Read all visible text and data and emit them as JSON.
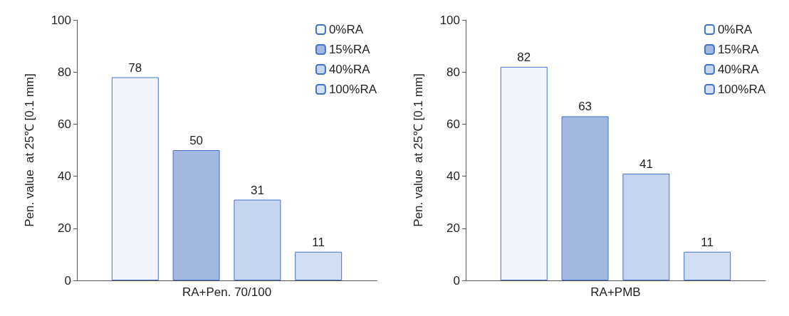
{
  "chart_data": [
    {
      "type": "bar",
      "categories": [
        "RA+Pen. 70/100"
      ],
      "ylabel": "Pen. value  at 25℃ [0.1 mm]",
      "ylim": [
        0,
        100
      ],
      "yticks": [
        0,
        20,
        40,
        60,
        80,
        100
      ],
      "grid": false,
      "legend": "top right",
      "data_labels": true,
      "series": [
        {
          "name": "0%RA",
          "color": "#f2f5fb",
          "values": [
            78
          ]
        },
        {
          "name": "15%RA",
          "color": "#a3b8e0",
          "values": [
            50
          ]
        },
        {
          "name": "40%RA",
          "color": "#c6d4ee",
          "values": [
            31
          ]
        },
        {
          "name": "100%RA",
          "color": "#d3def2",
          "values": [
            11
          ]
        }
      ]
    },
    {
      "type": "bar",
      "categories": [
        "RA+PMB"
      ],
      "ylabel": "Pen. value  at 25℃ [0.1 mm]",
      "ylim": [
        0,
        100
      ],
      "yticks": [
        0,
        20,
        40,
        60,
        80,
        100
      ],
      "grid": false,
      "legend": "top right",
      "data_labels": true,
      "series": [
        {
          "name": "0%RA",
          "color": "#f2f5fb",
          "values": [
            82
          ]
        },
        {
          "name": "15%RA",
          "color": "#a3b8e0",
          "values": [
            63
          ]
        },
        {
          "name": "40%RA",
          "color": "#c6d4ee",
          "values": [
            41
          ]
        },
        {
          "name": "100%RA",
          "color": "#d3def2",
          "values": [
            11
          ]
        }
      ]
    }
  ]
}
